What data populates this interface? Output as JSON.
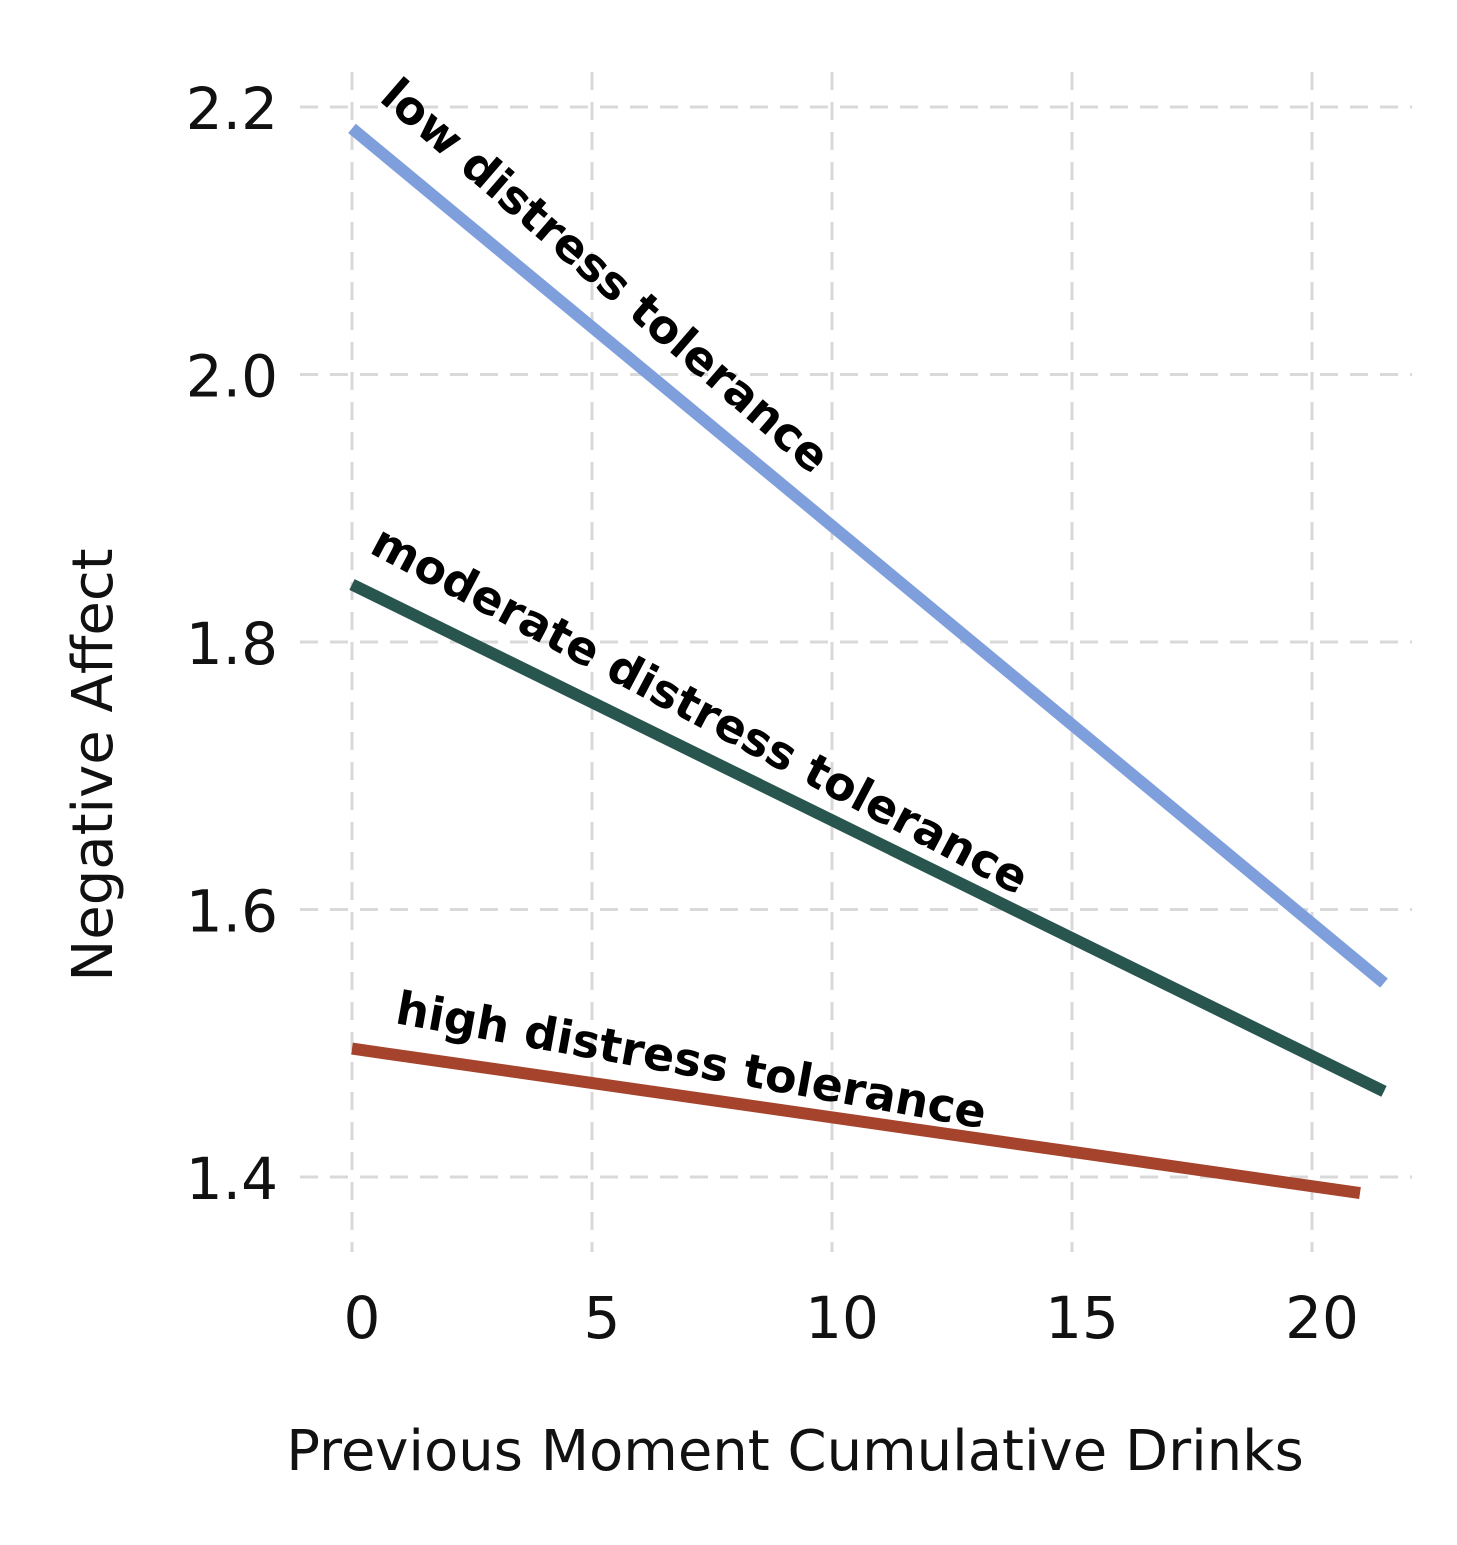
{
  "chart_data": {
    "type": "line",
    "title": "",
    "xlabel": "Previous Moment Cumulative Drinks",
    "ylabel": "Negative Affect",
    "xlim": [
      -1,
      22
    ],
    "ylim": [
      1.345,
      2.245
    ],
    "xticks": [
      0,
      5,
      10,
      15,
      20
    ],
    "xtick_labels": [
      "0",
      "5",
      "10",
      "15",
      "20"
    ],
    "yticks": [
      1.4,
      1.6,
      1.8,
      2.0,
      2.2
    ],
    "ytick_labels": [
      "1.4",
      "1.6",
      "1.8",
      "2.0",
      "2.2"
    ],
    "grid": true,
    "legend": "none (direct labels on lines)",
    "series": [
      {
        "name": "low distress tolerance",
        "color": "#7f9fdc",
        "x": [
          0,
          21.5
        ],
        "values": [
          2.184,
          1.545
        ]
      },
      {
        "name": "moderate distress tolerance",
        "color": "#29554f",
        "x": [
          0,
          21.5
        ],
        "values": [
          1.843,
          1.464
        ]
      },
      {
        "name": "high distress tolerance",
        "color": "#a5432c",
        "x": [
          0,
          21
        ],
        "values": [
          1.496,
          1.388
        ]
      }
    ]
  }
}
